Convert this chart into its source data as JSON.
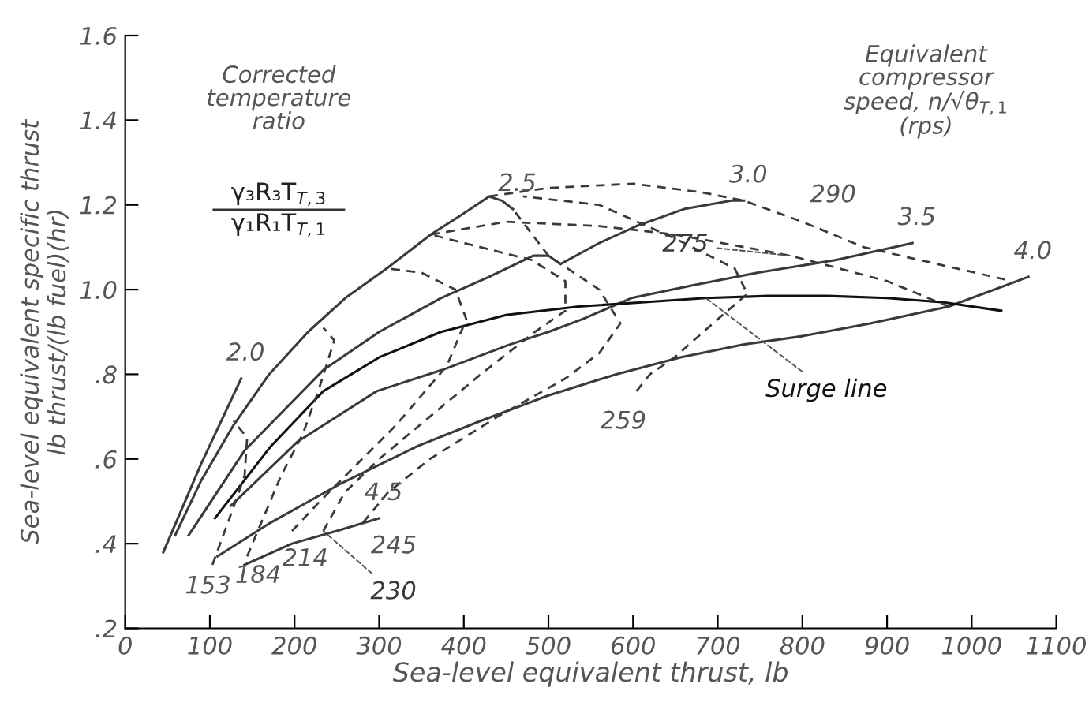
{
  "chart_data": {
    "type": "line",
    "xlabel": "Sea-level equivalent thrust, lb",
    "ylabel": "Sea-level equivalent specific thrust\nlb thrust/(lb fuel)(hr)",
    "xlim": [
      0,
      1100
    ],
    "xticks": [
      0,
      100,
      200,
      300,
      400,
      500,
      600,
      700,
      800,
      900,
      1000,
      1100
    ],
    "ylim": [
      0.2,
      1.6
    ],
    "yticks": [
      {
        "value": 0.2,
        "label": ".2"
      },
      {
        "value": 0.4,
        "label": ".4"
      },
      {
        "value": 0.6,
        "label": ".6"
      },
      {
        "value": 0.8,
        "label": ".8"
      },
      {
        "value": 1.0,
        "label": "1.0"
      },
      {
        "value": 1.2,
        "label": "1.2"
      },
      {
        "value": 1.4,
        "label": "1.4"
      },
      {
        "value": 1.6,
        "label": "1.6"
      }
    ],
    "grid": false,
    "legend": false,
    "series": [
      {
        "name": "2.0",
        "color": "#3a3a3a",
        "line_style": "solid",
        "x": [
          45,
          90,
          137
        ],
        "values": [
          0.38,
          0.59,
          0.79
        ]
      },
      {
        "name": "2.5",
        "color": "#3a3a3a",
        "line_style": "solid",
        "x": [
          59,
          90,
          128,
          170,
          216,
          260,
          309,
          361,
          400,
          430,
          445,
          458
        ],
        "values": [
          0.42,
          0.55,
          0.68,
          0.8,
          0.9,
          0.98,
          1.05,
          1.13,
          1.18,
          1.22,
          1.21,
          1.19
        ]
      },
      {
        "name": "3.0",
        "color": "#3a3a3a",
        "line_style": "solid",
        "x": [
          75,
          141,
          234,
          300,
          373,
          430,
          482,
          500,
          514,
          560,
          604,
          660,
          716,
          731
        ],
        "values": [
          0.42,
          0.62,
          0.81,
          0.9,
          0.98,
          1.03,
          1.08,
          1.08,
          1.06,
          1.11,
          1.15,
          1.19,
          1.21,
          1.21
        ]
      },
      {
        "name": "3.5",
        "color": "#3a3a3a",
        "line_style": "solid",
        "x": [
          125,
          203,
          297,
          374,
          454,
          500,
          540,
          598,
          670,
          748,
          840,
          930
        ],
        "values": [
          0.49,
          0.64,
          0.76,
          0.81,
          0.87,
          0.9,
          0.93,
          0.98,
          1.01,
          1.04,
          1.07,
          1.11
        ]
      },
      {
        "name": "4.0",
        "color": "#3a3a3a",
        "line_style": "solid",
        "x": [
          109,
          172,
          253,
          345,
          420,
          500,
          580,
          656,
          730,
          800,
          880,
          973,
          1067
        ],
        "values": [
          0.37,
          0.45,
          0.54,
          0.63,
          0.69,
          0.75,
          0.8,
          0.84,
          0.87,
          0.89,
          0.92,
          0.96,
          1.03
        ]
      },
      {
        "name": "4.5",
        "color": "#3a3a3a",
        "line_style": "solid",
        "x": [
          141,
          197,
          250,
          300
        ],
        "values": [
          0.35,
          0.4,
          0.43,
          0.46
        ]
      },
      {
        "name": "Surge line",
        "color": "#111111",
        "line_style": "solid",
        "x": [
          106,
          172,
          234,
          300,
          373,
          450,
          536,
          610,
          686,
          760,
          830,
          900,
          967,
          1035
        ],
        "values": [
          0.46,
          0.63,
          0.76,
          0.84,
          0.9,
          0.94,
          0.96,
          0.97,
          0.98,
          0.985,
          0.985,
          0.98,
          0.97,
          0.95
        ]
      },
      {
        "name": "153",
        "color": "#3a3a3a",
        "line_style": "dashed",
        "x": [
          103,
          125,
          141,
          144,
          128
        ],
        "values": [
          0.35,
          0.47,
          0.56,
          0.65,
          0.69
        ]
      },
      {
        "name": "184",
        "color": "#3a3a3a",
        "line_style": "dashed",
        "x": [
          144,
          165,
          184,
          210,
          228,
          247,
          234
        ],
        "values": [
          0.37,
          0.47,
          0.56,
          0.66,
          0.76,
          0.88,
          0.91
        ]
      },
      {
        "name": "214",
        "color": "#3a3a3a",
        "line_style": "dashed",
        "x": [
          197,
          230,
          260,
          320,
          380,
          403,
          390,
          350,
          309
        ],
        "values": [
          0.43,
          0.5,
          0.56,
          0.68,
          0.82,
          0.93,
          1.0,
          1.04,
          1.05
        ]
      },
      {
        "name": "230",
        "color": "#3a3a3a",
        "line_style": "dashed",
        "x": [
          234,
          259,
          300,
          360,
          420,
          484,
          520,
          520,
          480,
          420,
          361
        ],
        "values": [
          0.43,
          0.52,
          0.6,
          0.7,
          0.8,
          0.9,
          0.95,
          1.02,
          1.07,
          1.1,
          1.13
        ]
      },
      {
        "name": "245",
        "color": "#3a3a3a",
        "line_style": "dashed",
        "x": [
          281,
          310,
          360,
          440,
          520,
          560,
          585,
          560,
          500,
          458
        ],
        "values": [
          0.45,
          0.52,
          0.6,
          0.7,
          0.79,
          0.85,
          0.92,
          1.0,
          1.08,
          1.19
        ]
      },
      {
        "name": "259",
        "color": "#3a3a3a",
        "line_style": "dashed",
        "x": [
          604,
          620,
          649,
          700,
          735,
          720,
          650,
          560,
          470
        ],
        "values": [
          0.76,
          0.8,
          0.84,
          0.93,
          0.99,
          1.05,
          1.12,
          1.2,
          1.22
        ]
      },
      {
        "name": "275",
        "color": "#3a3a3a",
        "line_style": "dashed",
        "x": [
          361,
          450,
          560,
          650,
          786,
          900,
          973
        ],
        "values": [
          1.13,
          1.16,
          1.15,
          1.13,
          1.08,
          1.02,
          0.96
        ]
      },
      {
        "name": "290",
        "color": "#3a3a3a",
        "line_style": "dashed",
        "x": [
          430,
          500,
          600,
          680,
          731,
          800,
          873,
          960,
          1048
        ],
        "values": [
          1.22,
          1.24,
          1.25,
          1.23,
          1.21,
          1.16,
          1.1,
          1.06,
          1.02
        ]
      }
    ],
    "annotations": [
      "Corrected\ntemperature\nratio",
      "γ₃R₃T$_{T,3}$",
      "γ₁R₁T$_{T,1}$",
      "Equivalent\ncompressor\nspeed, n/√θ$_{T,1}$\n(rps)"
    ]
  }
}
